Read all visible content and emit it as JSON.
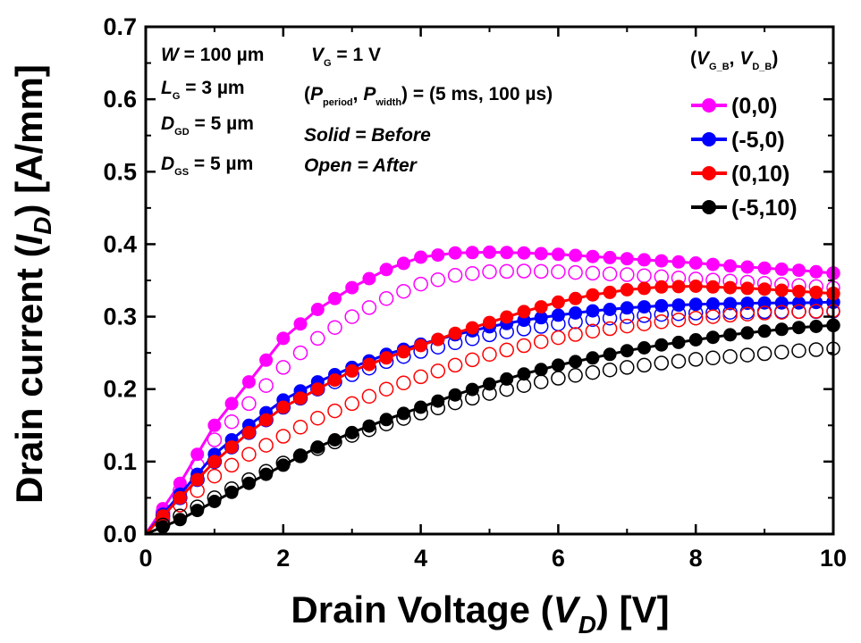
{
  "chart_data": {
    "type": "scatter",
    "xlabel": "Drain Voltage (V_D) [V]",
    "ylabel": "Drain current (I_D) [A/mm]",
    "xlim": [
      0,
      10
    ],
    "ylim": [
      0,
      0.7
    ],
    "xticks": [
      "0",
      "2",
      "4",
      "6",
      "8",
      "10"
    ],
    "yticks": [
      "0.0",
      "0.1",
      "0.2",
      "0.3",
      "0.4",
      "0.5",
      "0.6",
      "0.7"
    ],
    "grid": false,
    "legend_position": "top-right",
    "legend_title": "(V_G_B, V_D_B)",
    "annotations": {
      "left": [
        "W = 100 µm",
        "L_G = 3 µm",
        "D_GD = 5 µm",
        "D_GS = 5 µm"
      ],
      "middle": [
        "V_G = 1 V",
        "(P_period, P_width) = (5 ms, 100 µs)",
        "Solid = Before",
        "Open = After"
      ]
    },
    "series": [
      {
        "name": "(0,0)",
        "color": "#ff00ff",
        "marker": "filled",
        "x": [
          0,
          0.5,
          1,
          1.5,
          2,
          2.5,
          3,
          3.5,
          4,
          4.5,
          5,
          5.5,
          6,
          6.5,
          7,
          7.5,
          8,
          8.5,
          9,
          9.5,
          10
        ],
        "y": [
          0,
          0.07,
          0.15,
          0.21,
          0.27,
          0.31,
          0.34,
          0.365,
          0.382,
          0.388,
          0.389,
          0.388,
          0.386,
          0.383,
          0.38,
          0.377,
          0.374,
          0.37,
          0.367,
          0.364,
          0.36
        ]
      },
      {
        "name": "(0,0)",
        "color": "#ff00ff",
        "marker": "open",
        "x": [
          0,
          0.5,
          1,
          1.5,
          2,
          2.5,
          3,
          3.5,
          4,
          4.5,
          5,
          5.5,
          6,
          6.5,
          7,
          7.5,
          8,
          8.5,
          9,
          9.5,
          10
        ],
        "y": [
          0,
          0.06,
          0.13,
          0.18,
          0.23,
          0.27,
          0.3,
          0.325,
          0.345,
          0.357,
          0.362,
          0.363,
          0.362,
          0.36,
          0.358,
          0.355,
          0.352,
          0.349,
          0.346,
          0.343,
          0.34
        ]
      },
      {
        "name": "(-5,0)",
        "color": "#0000ff",
        "marker": "filled",
        "x": [
          0,
          0.5,
          1,
          1.5,
          2,
          2.5,
          3,
          3.5,
          4,
          4.5,
          5,
          5.5,
          6,
          6.5,
          7,
          7.5,
          8,
          8.5,
          9,
          9.5,
          10
        ],
        "y": [
          0,
          0.055,
          0.11,
          0.15,
          0.185,
          0.21,
          0.23,
          0.248,
          0.262,
          0.275,
          0.286,
          0.295,
          0.302,
          0.308,
          0.312,
          0.315,
          0.317,
          0.318,
          0.319,
          0.319,
          0.32
        ]
      },
      {
        "name": "(-5,0)",
        "color": "#0000ff",
        "marker": "open",
        "x": [
          0,
          0.5,
          1,
          1.5,
          2,
          2.5,
          3,
          3.5,
          4,
          4.5,
          5,
          5.5,
          6,
          6.5,
          7,
          7.5,
          8,
          8.5,
          9,
          9.5,
          10
        ],
        "y": [
          0,
          0.05,
          0.1,
          0.14,
          0.175,
          0.2,
          0.22,
          0.238,
          0.252,
          0.264,
          0.275,
          0.283,
          0.29,
          0.296,
          0.3,
          0.303,
          0.305,
          0.306,
          0.307,
          0.307,
          0.307
        ]
      },
      {
        "name": "(0,10)",
        "color": "#ff0000",
        "marker": "filled",
        "x": [
          0,
          0.5,
          1,
          1.5,
          2,
          2.5,
          3,
          3.5,
          4,
          4.5,
          5,
          5.5,
          6,
          6.5,
          7,
          7.5,
          8,
          8.5,
          9,
          9.5,
          10
        ],
        "y": [
          0,
          0.05,
          0.1,
          0.14,
          0.175,
          0.2,
          0.225,
          0.243,
          0.26,
          0.277,
          0.292,
          0.307,
          0.32,
          0.33,
          0.337,
          0.341,
          0.342,
          0.34,
          0.338,
          0.335,
          0.332
        ]
      },
      {
        "name": "(0,10)",
        "color": "#ff0000",
        "marker": "open",
        "x": [
          0,
          0.5,
          1,
          1.5,
          2,
          2.5,
          3,
          3.5,
          4,
          4.5,
          5,
          5.5,
          6,
          6.5,
          7,
          7.5,
          8,
          8.5,
          9,
          9.5,
          10
        ],
        "y": [
          0,
          0.04,
          0.08,
          0.11,
          0.135,
          0.16,
          0.18,
          0.2,
          0.217,
          0.233,
          0.248,
          0.26,
          0.271,
          0.28,
          0.287,
          0.293,
          0.298,
          0.302,
          0.305,
          0.307,
          0.308
        ]
      },
      {
        "name": "(-5,10)",
        "color": "#000000",
        "marker": "filled",
        "x": [
          0,
          0.5,
          1,
          1.5,
          2,
          2.5,
          3,
          3.5,
          4,
          4.5,
          5,
          5.5,
          6,
          6.5,
          7,
          7.5,
          8,
          8.5,
          9,
          9.5,
          10
        ],
        "y": [
          0,
          0.02,
          0.045,
          0.07,
          0.095,
          0.12,
          0.14,
          0.158,
          0.175,
          0.192,
          0.207,
          0.221,
          0.233,
          0.243,
          0.253,
          0.261,
          0.268,
          0.275,
          0.28,
          0.285,
          0.288
        ]
      },
      {
        "name": "(-5,10)",
        "color": "#000000",
        "marker": "open",
        "x": [
          0,
          0.5,
          1,
          1.5,
          2,
          2.5,
          3,
          3.5,
          4,
          4.5,
          5,
          5.5,
          6,
          6.5,
          7,
          7.5,
          8,
          8.5,
          9,
          9.5,
          10
        ],
        "y": [
          0,
          0.025,
          0.05,
          0.075,
          0.098,
          0.118,
          0.136,
          0.152,
          0.167,
          0.181,
          0.194,
          0.205,
          0.215,
          0.223,
          0.23,
          0.236,
          0.241,
          0.245,
          0.249,
          0.253,
          0.256
        ]
      }
    ]
  }
}
